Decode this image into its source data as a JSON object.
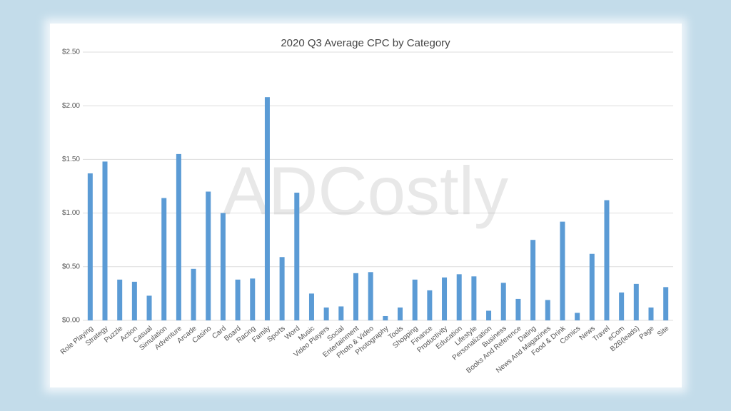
{
  "chart_data": {
    "type": "bar",
    "title": "2020 Q3 Average CPC by Category",
    "watermark": "ADCostly",
    "categories": [
      "Role Playing",
      "Strategy",
      "Puzzle",
      "Action",
      "Casual",
      "Simulation",
      "Adventure",
      "Arcade",
      "Casino",
      "Card",
      "Board",
      "Racing",
      "Family",
      "Sports",
      "Word",
      "Music",
      "Video Players",
      "Social",
      "Entertainment",
      "Photo & Video",
      "Photography",
      "Tools",
      "Shopping",
      "Finance",
      "Productivity",
      "Education",
      "Lifestyle",
      "Personalization",
      "Business",
      "Books And Reference",
      "Dating",
      "News And Magazines",
      "Food & Drink",
      "Comics",
      "News",
      "Travel",
      "eCom",
      "B2B(leads)",
      "Page",
      "Site"
    ],
    "values": [
      1.37,
      1.48,
      0.38,
      0.36,
      0.23,
      1.14,
      1.55,
      0.48,
      1.2,
      1.0,
      0.38,
      0.39,
      2.08,
      0.59,
      1.19,
      0.25,
      0.12,
      0.13,
      0.44,
      0.45,
      0.04,
      0.12,
      0.38,
      0.28,
      0.4,
      0.43,
      0.41,
      0.09,
      0.35,
      0.2,
      0.75,
      0.19,
      0.92,
      0.07,
      0.62,
      1.12,
      0.26,
      0.34,
      0.12,
      0.31
    ],
    "color": "#5b9bd5",
    "ylim": [
      0,
      2.5
    ],
    "yticks": [
      {
        "value": 0,
        "label": "$0.00"
      },
      {
        "value": 0.5,
        "label": "$0.50"
      },
      {
        "value": 1,
        "label": "$1.00"
      },
      {
        "value": 1.5,
        "label": "$1.50"
      },
      {
        "value": 2,
        "label": "$2.00"
      },
      {
        "value": 2.5,
        "label": "$2.50"
      }
    ],
    "grid": true
  }
}
